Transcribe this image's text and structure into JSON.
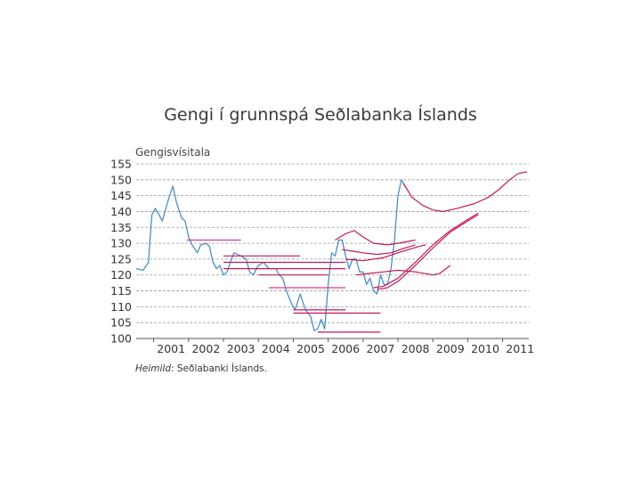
{
  "chart_data": {
    "type": "line",
    "title": "Gengi í grunnspá Seðlabanka Íslands",
    "ylabel": "Gengisvísitala",
    "ylim": [
      100,
      155
    ],
    "yticks": [
      100,
      105,
      110,
      115,
      120,
      125,
      130,
      135,
      140,
      145,
      150,
      155
    ],
    "xlim": [
      2000.5,
      2011.75
    ],
    "xticks": [
      "2001",
      "2002",
      "2003",
      "2004",
      "2005",
      "2006",
      "2007",
      "2008",
      "2009",
      "2010",
      "2011"
    ],
    "grid": true,
    "source_label": "Heimild",
    "source_text": ": Seðlabanki Íslands.",
    "series": [
      {
        "role": "actual",
        "color": "#4a90c0",
        "points": [
          [
            2000.5,
            122
          ],
          [
            2000.7,
            121.5
          ],
          [
            2000.85,
            124
          ],
          [
            2000.95,
            139
          ],
          [
            2001.05,
            141
          ],
          [
            2001.15,
            139
          ],
          [
            2001.25,
            137
          ],
          [
            2001.4,
            143
          ],
          [
            2001.55,
            148
          ],
          [
            2001.65,
            143
          ],
          [
            2001.8,
            138
          ],
          [
            2001.9,
            137
          ],
          [
            2002.0,
            132
          ],
          [
            2002.1,
            129.5
          ],
          [
            2002.25,
            127
          ],
          [
            2002.35,
            129.5
          ],
          [
            2002.5,
            130
          ],
          [
            2002.6,
            129
          ],
          [
            2002.7,
            124
          ],
          [
            2002.8,
            122
          ],
          [
            2002.9,
            123
          ],
          [
            2003.0,
            120
          ],
          [
            2003.1,
            121
          ],
          [
            2003.3,
            127
          ],
          [
            2003.5,
            126
          ],
          [
            2003.65,
            125
          ],
          [
            2003.75,
            121
          ],
          [
            2003.85,
            120
          ],
          [
            2004.0,
            123
          ],
          [
            2004.15,
            124
          ],
          [
            2004.3,
            122
          ],
          [
            2004.5,
            122
          ],
          [
            2004.6,
            120
          ],
          [
            2004.7,
            119
          ],
          [
            2004.8,
            115
          ],
          [
            2004.95,
            111
          ],
          [
            2005.05,
            109
          ],
          [
            2005.2,
            114
          ],
          [
            2005.35,
            109
          ],
          [
            2005.5,
            107
          ],
          [
            2005.6,
            102.5
          ],
          [
            2005.7,
            103
          ],
          [
            2005.8,
            106
          ],
          [
            2005.9,
            103
          ],
          [
            2006.0,
            117
          ],
          [
            2006.1,
            127
          ],
          [
            2006.2,
            126
          ],
          [
            2006.3,
            131
          ],
          [
            2006.4,
            131
          ],
          [
            2006.5,
            126
          ],
          [
            2006.6,
            122
          ],
          [
            2006.7,
            125
          ],
          [
            2006.8,
            125
          ],
          [
            2006.9,
            121
          ],
          [
            2007.0,
            121
          ],
          [
            2007.1,
            117
          ],
          [
            2007.2,
            119
          ],
          [
            2007.3,
            115
          ],
          [
            2007.4,
            114
          ],
          [
            2007.5,
            120
          ],
          [
            2007.6,
            117
          ],
          [
            2007.7,
            117
          ],
          [
            2007.8,
            122
          ],
          [
            2007.9,
            131
          ],
          [
            2008.0,
            145
          ],
          [
            2008.1,
            150
          ],
          [
            2008.2,
            148
          ]
        ]
      },
      {
        "role": "forecast",
        "color": "#d63a8f",
        "points": [
          [
            2001.95,
            131
          ],
          [
            2003.5,
            131
          ]
        ]
      },
      {
        "role": "forecast",
        "color": "#c2185b",
        "points": [
          [
            2003.0,
            126
          ],
          [
            2005.2,
            126
          ]
        ]
      },
      {
        "role": "forecast",
        "color": "#c2185b",
        "points": [
          [
            2003.0,
            124
          ],
          [
            2006.5,
            124
          ]
        ]
      },
      {
        "role": "forecast",
        "color": "#c2185b",
        "points": [
          [
            2003.0,
            122
          ],
          [
            2006.5,
            122
          ]
        ]
      },
      {
        "role": "forecast",
        "color": "#c2185b",
        "points": [
          [
            2004.0,
            120
          ],
          [
            2006.0,
            120
          ]
        ]
      },
      {
        "role": "forecast",
        "color": "#d63a8f",
        "points": [
          [
            2004.3,
            116
          ],
          [
            2006.5,
            116
          ]
        ]
      },
      {
        "role": "forecast",
        "color": "#c2185b",
        "points": [
          [
            2005.0,
            109
          ],
          [
            2006.5,
            109
          ]
        ]
      },
      {
        "role": "forecast",
        "color": "#c2185b",
        "points": [
          [
            2005.0,
            108
          ],
          [
            2007.5,
            108
          ]
        ]
      },
      {
        "role": "forecast",
        "color": "#c2185b",
        "points": [
          [
            2005.7,
            102
          ],
          [
            2007.5,
            102
          ]
        ]
      },
      {
        "role": "forecast",
        "color": "#c2185b",
        "points": [
          [
            2006.2,
            131
          ],
          [
            2006.5,
            133
          ],
          [
            2006.75,
            134
          ],
          [
            2007.0,
            132
          ],
          [
            2007.3,
            130
          ],
          [
            2007.7,
            129.5
          ],
          [
            2008.0,
            130
          ],
          [
            2008.5,
            131
          ]
        ]
      },
      {
        "role": "forecast",
        "color": "#c2185b",
        "points": [
          [
            2006.4,
            128
          ],
          [
            2006.7,
            127.5
          ],
          [
            2007.0,
            127
          ],
          [
            2007.4,
            126.5
          ],
          [
            2007.8,
            127
          ],
          [
            2008.2,
            128.5
          ],
          [
            2008.5,
            129.5
          ]
        ]
      },
      {
        "role": "forecast",
        "color": "#c2185b",
        "points": [
          [
            2006.5,
            125
          ],
          [
            2007.0,
            124.5
          ],
          [
            2007.6,
            125.5
          ],
          [
            2008.0,
            127
          ],
          [
            2008.3,
            128
          ],
          [
            2008.6,
            129
          ],
          [
            2008.8,
            129.5
          ]
        ]
      },
      {
        "role": "forecast",
        "color": "#c2185b",
        "points": [
          [
            2006.8,
            120
          ],
          [
            2007.2,
            120.5
          ],
          [
            2007.6,
            121
          ],
          [
            2008.0,
            121.5
          ],
          [
            2008.5,
            121
          ],
          [
            2009.0,
            120
          ],
          [
            2009.2,
            120.5
          ],
          [
            2009.5,
            123
          ]
        ]
      },
      {
        "role": "forecast",
        "color": "#c2185b",
        "points": [
          [
            2007.3,
            116
          ],
          [
            2007.6,
            116.5
          ],
          [
            2008.0,
            119
          ],
          [
            2008.5,
            124
          ],
          [
            2009.0,
            129.5
          ],
          [
            2009.5,
            134
          ],
          [
            2010.0,
            137.5
          ],
          [
            2010.3,
            139.5
          ]
        ]
      },
      {
        "role": "forecast",
        "color": "#c2185b",
        "points": [
          [
            2007.4,
            115.5
          ],
          [
            2007.7,
            116
          ],
          [
            2008.0,
            118
          ],
          [
            2008.5,
            123
          ],
          [
            2009.0,
            128.5
          ],
          [
            2009.5,
            133.5
          ],
          [
            2010.0,
            137
          ],
          [
            2010.3,
            139
          ]
        ]
      },
      {
        "role": "forecast",
        "color": "#c2185b",
        "points": [
          [
            2008.15,
            149
          ],
          [
            2008.4,
            144.5
          ],
          [
            2008.7,
            142
          ],
          [
            2009.0,
            140.5
          ],
          [
            2009.3,
            140
          ],
          [
            2009.7,
            141
          ],
          [
            2010.2,
            142.5
          ],
          [
            2010.6,
            144.5
          ],
          [
            2010.9,
            147
          ],
          [
            2011.2,
            150
          ],
          [
            2011.45,
            152
          ],
          [
            2011.7,
            152.5
          ]
        ]
      }
    ]
  }
}
